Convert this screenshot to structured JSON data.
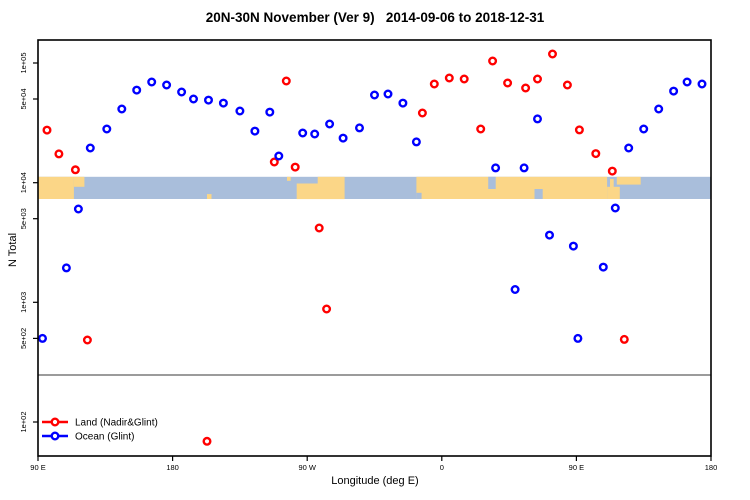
{
  "title": "20N-30N November (Ver 9)   2014-09-06 to 2018-12-31",
  "chart_data": {
    "type": "scatter",
    "title": "20N-30N November (Ver 9)   2014-09-06 to 2018-12-31",
    "xlabel": "Longitude (deg E)",
    "ylabel": "N Total",
    "grid": false,
    "legend_position": "bottom-left-inside",
    "x_axis": {
      "min": 90,
      "max": 540,
      "wrap_note": "longitude axis wraps eastward: 90E to 180 to 90W to 0 to 90E to 180",
      "ticks": [
        {
          "value": 90,
          "label": "90 E"
        },
        {
          "value": 180,
          "label": "180"
        },
        {
          "value": 270,
          "label": "90 W"
        },
        {
          "value": 360,
          "label": "0"
        },
        {
          "value": 450,
          "label": "90 E"
        },
        {
          "value": 540,
          "label": "180"
        }
      ]
    },
    "y_axis": {
      "scale": "log",
      "min": 52,
      "max": 155700,
      "ticks": [
        {
          "value": 100000,
          "label": "1e+05"
        },
        {
          "value": 50000,
          "label": "5e+04"
        },
        {
          "value": 10000,
          "label": "1e+04"
        },
        {
          "value": 5000,
          "label": "5e+03"
        },
        {
          "value": 1000,
          "label": "1e+03"
        },
        {
          "value": 500,
          "label": "5e+02"
        },
        {
          "value": 100,
          "label": "1e+02"
        }
      ]
    },
    "hline": {
      "value": 247,
      "color": "#7a7a7a"
    },
    "map_band": {
      "v_top": 11200,
      "v_bottom": 7300,
      "ocean_color": "#a9bedb",
      "land_color": "#fbd687",
      "segments": [
        {
          "x0": 90,
          "x1": 114,
          "f0": 0,
          "f1": 1,
          "type": "land"
        },
        {
          "x0": 114,
          "x1": 121,
          "f0": 0,
          "f1": 0.45,
          "type": "land"
        },
        {
          "x0": 203,
          "x1": 206,
          "f0": 0.78,
          "f1": 1,
          "type": "land"
        },
        {
          "x0": 256.5,
          "x1": 259,
          "f0": 0,
          "f1": 0.18,
          "type": "land"
        },
        {
          "x0": 263,
          "x1": 295,
          "f0": 0.3,
          "f1": 1,
          "type": "land"
        },
        {
          "x0": 277,
          "x1": 295,
          "f0": 0,
          "f1": 0.3,
          "type": "land"
        },
        {
          "x0": 343,
          "x1": 470.5,
          "f0": 0,
          "f1": 1,
          "type": "land"
        },
        {
          "x0": 470.5,
          "x1": 479,
          "f0": 0.45,
          "f1": 1,
          "type": "land"
        },
        {
          "x0": 343,
          "x1": 346.5,
          "f0": 0.72,
          "f1": 1,
          "type": "ocean"
        },
        {
          "x0": 391,
          "x1": 396,
          "f0": 0,
          "f1": 0.55,
          "type": "ocean"
        },
        {
          "x0": 422,
          "x1": 427.5,
          "f0": 0.55,
          "f1": 1,
          "type": "ocean"
        },
        {
          "x0": 472.5,
          "x1": 475,
          "f0": 0.1,
          "f1": 0.5,
          "type": "land"
        },
        {
          "x0": 477,
          "x1": 493,
          "f0": 0,
          "f1": 0.35,
          "type": "land"
        }
      ]
    },
    "series": [
      {
        "id": "land",
        "name": "Land (Nadir&Glint)",
        "color": "#ff0000",
        "marker": "open-circle",
        "points": [
          [
            96,
            27500
          ],
          [
            104,
            17400
          ],
          [
            115,
            12800
          ],
          [
            123,
            485
          ],
          [
            203,
            69
          ],
          [
            248,
            14900
          ],
          [
            256,
            70700
          ],
          [
            262,
            13500
          ],
          [
            278,
            4180
          ],
          [
            283,
            880
          ],
          [
            347,
            38200
          ],
          [
            355,
            66800
          ],
          [
            365,
            74900
          ],
          [
            375,
            73500
          ],
          [
            386,
            28100
          ],
          [
            394,
            104000
          ],
          [
            404,
            68100
          ],
          [
            416,
            61800
          ],
          [
            424,
            73500
          ],
          [
            434,
            118900
          ],
          [
            444,
            65500
          ],
          [
            452,
            27600
          ],
          [
            463,
            17500
          ],
          [
            474,
            12500
          ],
          [
            482,
            490
          ]
        ]
      },
      {
        "id": "ocean",
        "name": "Ocean (Glint)",
        "color": "#0000ff",
        "marker": "open-circle",
        "points": [
          [
            93,
            500
          ],
          [
            109,
            1940
          ],
          [
            117,
            6030
          ],
          [
            125,
            19500
          ],
          [
            136,
            28100
          ],
          [
            146,
            41300
          ],
          [
            156,
            59400
          ],
          [
            166,
            69400
          ],
          [
            176,
            65500
          ],
          [
            186,
            57200
          ],
          [
            194,
            50000
          ],
          [
            204,
            49000
          ],
          [
            214,
            46200
          ],
          [
            225,
            39700
          ],
          [
            235,
            27000
          ],
          [
            245,
            38900
          ],
          [
            251,
            16700
          ],
          [
            267,
            26000
          ],
          [
            275,
            25500
          ],
          [
            285,
            30900
          ],
          [
            294,
            23600
          ],
          [
            305,
            28700
          ],
          [
            315,
            54000
          ],
          [
            324,
            55100
          ],
          [
            334,
            46200
          ],
          [
            343,
            21900
          ],
          [
            396,
            13300
          ],
          [
            409,
            1280
          ],
          [
            415,
            13300
          ],
          [
            424,
            34100
          ],
          [
            432,
            3650
          ],
          [
            448,
            2950
          ],
          [
            451,
            500
          ],
          [
            468,
            1970
          ],
          [
            476,
            6140
          ],
          [
            485,
            19500
          ],
          [
            495,
            28100
          ],
          [
            505,
            41300
          ],
          [
            515,
            58300
          ],
          [
            524,
            69400
          ],
          [
            534,
            66800
          ]
        ]
      }
    ]
  }
}
